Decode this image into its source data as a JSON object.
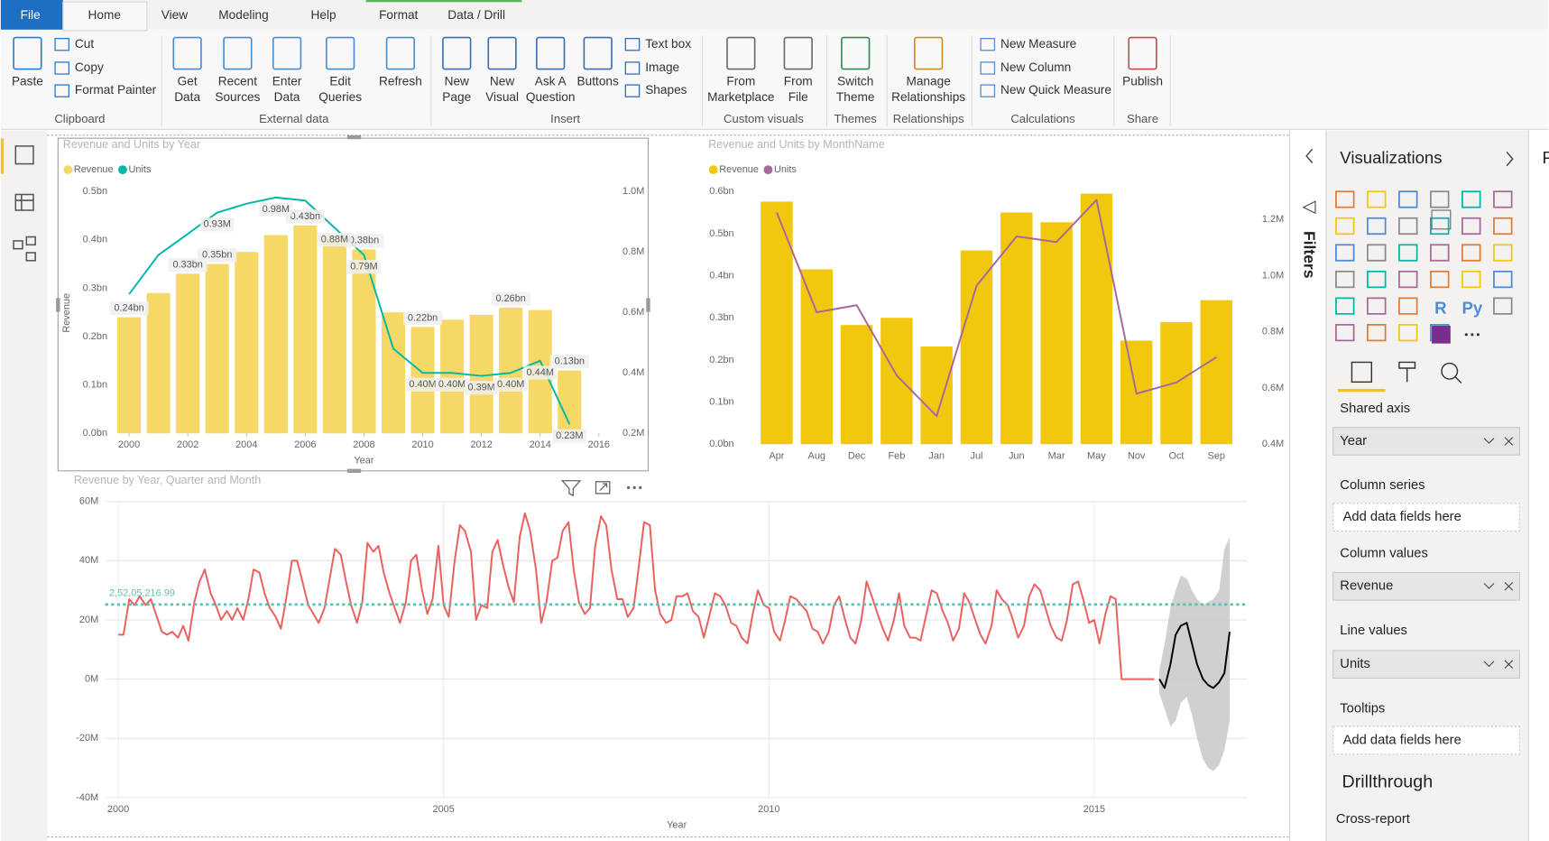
{
  "ribbon": {
    "tabs": [
      "File",
      "Home",
      "View",
      "Modeling",
      "Help",
      "Format",
      "Data / Drill"
    ],
    "groups": [
      {
        "name": "Clipboard",
        "buttons": [
          [
            "Paste"
          ],
          [
            "Cut"
          ],
          [
            "Copy"
          ],
          [
            "Format Painter"
          ]
        ]
      },
      {
        "name": "External data",
        "buttons": [
          [
            "Get",
            "Data"
          ],
          [
            "Recent",
            "Sources"
          ],
          [
            "Enter",
            "Data"
          ],
          [
            "Edit",
            "Queries"
          ],
          [
            "Refresh"
          ]
        ]
      },
      {
        "name": "Insert",
        "buttons": [
          [
            "New",
            "Page"
          ],
          [
            "New",
            "Visual"
          ],
          [
            "Ask A",
            "Question"
          ],
          [
            "Buttons"
          ],
          [
            "Text box"
          ],
          [
            "Image"
          ],
          [
            "Shapes"
          ]
        ]
      },
      {
        "name": "Custom visuals",
        "buttons": [
          [
            "From",
            "Marketplace"
          ],
          [
            "From",
            "File"
          ]
        ]
      },
      {
        "name": "Themes",
        "buttons": [
          [
            "Switch",
            "Theme"
          ]
        ]
      },
      {
        "name": "Relationships",
        "buttons": [
          [
            "Manage",
            "Relationships"
          ]
        ]
      },
      {
        "name": "Calculations",
        "buttons": [
          [
            "New Measure"
          ],
          [
            "New Column"
          ],
          [
            "New Quick Measure"
          ]
        ]
      },
      {
        "name": "Share",
        "buttons": [
          [
            "Publish"
          ]
        ]
      }
    ]
  },
  "filters": {
    "title": "Filters"
  },
  "visualizations": {
    "title": "Visualizations",
    "icon_labels": [
      "R",
      "Py"
    ],
    "wells": [
      {
        "label": "Shared axis",
        "field": "Year"
      },
      {
        "label": "Column series",
        "placeholder": "Add data fields here"
      },
      {
        "label": "Column values",
        "field": "Revenue"
      },
      {
        "label": "Line values",
        "field": "Units"
      },
      {
        "label": "Tooltips",
        "placeholder": "Add data fields here"
      }
    ],
    "drillthrough": "Drillthrough",
    "cross_report": "Cross-report"
  },
  "fields": {
    "title_fragment": "F"
  },
  "chart_data": [
    {
      "type": "combo",
      "title": "Revenue and Units by Year",
      "x_label": "Year",
      "y_label": "Revenue",
      "legend": "top-left",
      "grid": false,
      "x": [
        2000,
        2001,
        2002,
        2003,
        2004,
        2005,
        2006,
        2007,
        2008,
        2009,
        2010,
        2011,
        2012,
        2013,
        2014,
        2015
      ],
      "xlim": [
        1999.5,
        2016.2
      ],
      "xticks": [
        2000,
        2002,
        2004,
        2006,
        2008,
        2010,
        2012,
        2014,
        2016
      ],
      "ylim": [
        0,
        0.5
      ],
      "yticks": [
        {
          "value": 0,
          "label": "0.0bn"
        },
        {
          "value": 0.1,
          "label": "0.1bn"
        },
        {
          "value": 0.2,
          "label": "0.2bn"
        },
        {
          "value": 0.3,
          "label": "0.3bn"
        },
        {
          "value": 0.4,
          "label": "0.4bn"
        },
        {
          "value": 0.5,
          "label": "0.5bn"
        }
      ],
      "y2lim": [
        0.2,
        1.0
      ],
      "y2ticks": [
        {
          "value": 0.2,
          "label": "0.2M"
        },
        {
          "value": 0.4,
          "label": "0.4M"
        },
        {
          "value": 0.6,
          "label": "0.6M"
        },
        {
          "value": 0.8,
          "label": "0.8M"
        },
        {
          "value": 1.0,
          "label": "1.0M"
        }
      ],
      "series": [
        {
          "name": "Revenue",
          "mark": "bar",
          "color": "#f5d865",
          "values": [
            0.24,
            0.29,
            0.33,
            0.35,
            0.375,
            0.41,
            0.43,
            0.41,
            0.38,
            0.25,
            0.22,
            0.235,
            0.245,
            0.26,
            0.255,
            0.13
          ],
          "value_labels": [
            "0.24bn",
            null,
            "0.33bn",
            "0.35bn",
            null,
            null,
            "0.43bn",
            null,
            "0.38bn",
            null,
            "0.22bn",
            null,
            null,
            "0.26bn",
            null,
            "0.13bn"
          ]
        },
        {
          "name": "Units",
          "mark": "line",
          "axis": "y2",
          "color": "#01b8aa",
          "values": [
            0.66,
            0.79,
            0.86,
            0.93,
            0.96,
            0.98,
            0.97,
            0.88,
            0.79,
            0.48,
            0.4,
            0.4,
            0.39,
            0.4,
            0.44,
            0.23
          ],
          "value_labels": [
            null,
            null,
            null,
            "0.93M",
            null,
            "0.98M",
            null,
            "0.88M",
            "0.79M",
            null,
            "0.40M",
            "0.40M",
            "0.39M",
            "0.40M",
            "0.44M",
            "0.23M"
          ]
        }
      ]
    },
    {
      "type": "combo",
      "title": "Revenue and Units by MonthName",
      "legend": "top-left",
      "grid": false,
      "categories": [
        "Apr",
        "Aug",
        "Dec",
        "Feb",
        "Jan",
        "Jul",
        "Jun",
        "Mar",
        "May",
        "Nov",
        "Oct",
        "Sep"
      ],
      "ylim": [
        0,
        0.6
      ],
      "yticks": [
        {
          "value": 0,
          "label": "0.0bn"
        },
        {
          "value": 0.1,
          "label": "0.1bn"
        },
        {
          "value": 0.2,
          "label": "0.2bn"
        },
        {
          "value": 0.3,
          "label": "0.3bn"
        },
        {
          "value": 0.4,
          "label": "0.4bn"
        },
        {
          "value": 0.5,
          "label": "0.5bn"
        },
        {
          "value": 0.6,
          "label": "0.6bn"
        }
      ],
      "y2lim": [
        0.4,
        1.3
      ],
      "y2ticks": [
        {
          "value": 0.4,
          "label": "0.4M"
        },
        {
          "value": 0.6,
          "label": "0.6M"
        },
        {
          "value": 0.8,
          "label": "0.8M"
        },
        {
          "value": 1.0,
          "label": "1.0M"
        },
        {
          "value": 1.2,
          "label": "1.2M"
        }
      ],
      "series": [
        {
          "name": "Revenue",
          "mark": "bar",
          "color": "#f2c80f",
          "values": [
            0.576,
            0.415,
            0.283,
            0.3,
            0.232,
            0.46,
            0.55,
            0.527,
            0.595,
            0.246,
            0.29,
            0.342
          ]
        },
        {
          "name": "Units",
          "mark": "line",
          "axis": "y2",
          "color": "#a66999",
          "values": [
            1.225,
            0.87,
            0.895,
            0.645,
            0.5,
            0.965,
            1.14,
            1.12,
            1.27,
            0.58,
            0.62,
            0.71
          ]
        }
      ]
    },
    {
      "type": "line",
      "title": "Revenue by Year, Quarter and Month",
      "x_label": "Year",
      "grid": true,
      "xlim": [
        1999.8,
        2017.35
      ],
      "xticks": [
        2000,
        2005,
        2010,
        2015
      ],
      "ylim": [
        -40,
        60
      ],
      "yticks": [
        {
          "value": -40,
          "label": "-40M"
        },
        {
          "value": -20,
          "label": "-20M"
        },
        {
          "value": 0,
          "label": "0M"
        },
        {
          "value": 20,
          "label": "20M"
        },
        {
          "value": 40,
          "label": "40M"
        },
        {
          "value": 60,
          "label": "60M"
        }
      ],
      "reference_line": {
        "value": 25.20521699,
        "label": "2,52,05,216.99",
        "color": "#5cc0b2"
      },
      "band": {
        "color": "#c8c8c8",
        "x": [
          2016,
          2016.08,
          2016.17,
          2016.25,
          2016.33,
          2016.42,
          2016.5,
          2016.58,
          2016.67,
          2016.75,
          2016.83,
          2016.92,
          2017,
          2017.08
        ],
        "upper": [
          3,
          12,
          24,
          30,
          35,
          34,
          30,
          27,
          25,
          26,
          27,
          30,
          44,
          48
        ],
        "lower": [
          -5,
          -10,
          -16,
          -14,
          -8,
          -6,
          -12,
          -20,
          -27,
          -30,
          -31,
          -29,
          -24,
          -14
        ]
      },
      "series": [
        {
          "color": "#e8615f",
          "x": [
            2000,
            2000.08,
            2000.17,
            2000.25,
            2000.33,
            2000.42,
            2000.5,
            2000.58,
            2000.67,
            2000.75,
            2000.83,
            2000.92,
            2001,
            2001.08,
            2001.17,
            2001.25,
            2001.33,
            2001.42,
            2001.5,
            2001.58,
            2001.67,
            2001.75,
            2001.83,
            2001.92,
            2002,
            2002.08,
            2002.17,
            2002.25,
            2002.33,
            2002.42,
            2002.5,
            2002.58,
            2002.67,
            2002.75,
            2002.83,
            2002.92,
            2003,
            2003.08,
            2003.17,
            2003.25,
            2003.33,
            2003.42,
            2003.5,
            2003.58,
            2003.67,
            2003.75,
            2003.83,
            2003.92,
            2004,
            2004.08,
            2004.17,
            2004.25,
            2004.33,
            2004.42,
            2004.5,
            2004.58,
            2004.67,
            2004.75,
            2004.83,
            2004.92,
            2005,
            2005.08,
            2005.17,
            2005.25,
            2005.33,
            2005.42,
            2005.5,
            2005.58,
            2005.67,
            2005.75,
            2005.83,
            2005.92,
            2006,
            2006.08,
            2006.17,
            2006.25,
            2006.33,
            2006.42,
            2006.5,
            2006.58,
            2006.67,
            2006.75,
            2006.83,
            2006.92,
            2007,
            2007.08,
            2007.17,
            2007.25,
            2007.33,
            2007.42,
            2007.5,
            2007.58,
            2007.67,
            2007.75,
            2007.83,
            2007.92,
            2008,
            2008.08,
            2008.17,
            2008.25,
            2008.33,
            2008.42,
            2008.5,
            2008.58,
            2008.67,
            2008.75,
            2008.83,
            2008.92,
            2009,
            2009.08,
            2009.17,
            2009.25,
            2009.33,
            2009.42,
            2009.5,
            2009.58,
            2009.67,
            2009.75,
            2009.83,
            2009.92,
            2010,
            2010.08,
            2010.17,
            2010.25,
            2010.33,
            2010.42,
            2010.5,
            2010.58,
            2010.67,
            2010.75,
            2010.83,
            2010.92,
            2011,
            2011.08,
            2011.17,
            2011.25,
            2011.33,
            2011.42,
            2011.5,
            2011.58,
            2011.67,
            2011.75,
            2011.83,
            2011.92,
            2012,
            2012.08,
            2012.17,
            2012.25,
            2012.33,
            2012.42,
            2012.5,
            2012.58,
            2012.67,
            2012.75,
            2012.83,
            2012.92,
            2013,
            2013.08,
            2013.17,
            2013.25,
            2013.33,
            2013.42,
            2013.5,
            2013.58,
            2013.67,
            2013.75,
            2013.83,
            2013.92,
            2014,
            2014.08,
            2014.17,
            2014.25,
            2014.33,
            2014.42,
            2014.5,
            2014.58,
            2014.67,
            2014.75,
            2014.83,
            2014.92,
            2015,
            2015.08,
            2015.17,
            2015.25,
            2015.33,
            2015.42,
            2015.5,
            2015.58,
            2015.67,
            2015.75,
            2015.83,
            2015.92
          ],
          "values": [
            15,
            15,
            27,
            25,
            28,
            25,
            27,
            22,
            16,
            15,
            16,
            14,
            18,
            13,
            26,
            33,
            37,
            29,
            25,
            20,
            23,
            20,
            24,
            20,
            27,
            37,
            36,
            29,
            24,
            21,
            17,
            27,
            40,
            40,
            33,
            25,
            22,
            19,
            24,
            34,
            44,
            42,
            33,
            25,
            19,
            26,
            46,
            43,
            45,
            36,
            29,
            24,
            19,
            26,
            40,
            42,
            30,
            22,
            27,
            45,
            25,
            21,
            40,
            52,
            50,
            43,
            20,
            25,
            24,
            43,
            47,
            38,
            31,
            26,
            48,
            56,
            50,
            37,
            19,
            26,
            40,
            41,
            50,
            53,
            37,
            26,
            22,
            24,
            45,
            55,
            52,
            37,
            27,
            27,
            21,
            24,
            38,
            53,
            52,
            30,
            22,
            19,
            20,
            28,
            28,
            29,
            23,
            21,
            14,
            21,
            29,
            28,
            25,
            19,
            18,
            14,
            12,
            22,
            30,
            25,
            24,
            16,
            13,
            20,
            28,
            27,
            25,
            23,
            17,
            16,
            12,
            16,
            25,
            28,
            20,
            14,
            12,
            20,
            33,
            28,
            22,
            17,
            13,
            20,
            29,
            18,
            14,
            14,
            13,
            22,
            30,
            29,
            23,
            19,
            13,
            17,
            29,
            26,
            20,
            15,
            12,
            18,
            30,
            27,
            25,
            20,
            14,
            18,
            28,
            32,
            30,
            24,
            18,
            14,
            13,
            20,
            32,
            33,
            27,
            19,
            20,
            12,
            22,
            28,
            27,
            0,
            0,
            0,
            0,
            0,
            0,
            0
          ]
        },
        {
          "color": "#000000",
          "x": [
            2016,
            2016.08,
            2016.17,
            2016.25,
            2016.33,
            2016.42,
            2016.5,
            2016.58,
            2016.67,
            2016.75,
            2016.83,
            2016.92,
            2017,
            2017.08
          ],
          "values": [
            0,
            -3,
            5,
            15,
            18,
            19,
            12,
            5,
            0,
            -2,
            -3,
            -1,
            2,
            16
          ]
        }
      ]
    }
  ]
}
